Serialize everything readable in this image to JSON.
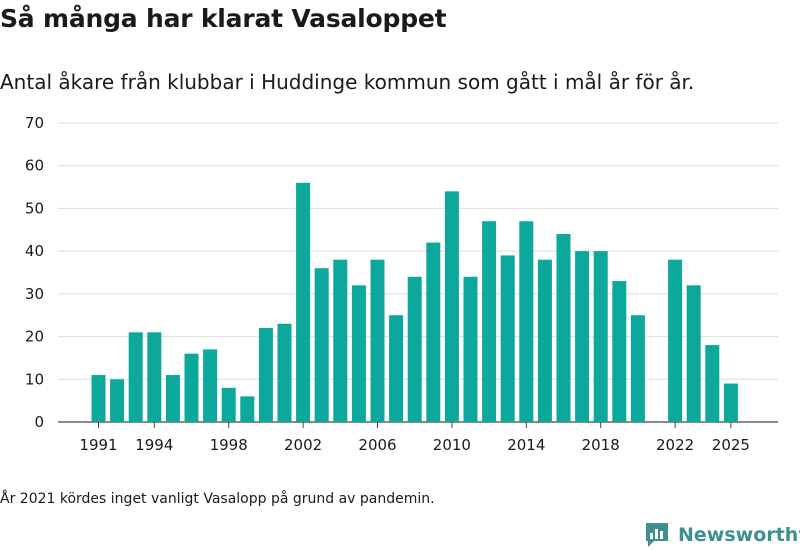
{
  "header": {
    "title": "Så många har klarat Vasaloppet",
    "subtitle": "Antal åkare från klubbar i Huddinge kommun som gått i mål år för år."
  },
  "footer": {
    "note": "År 2021 kördes inget vanligt Vasalopp på grund av pandemin.",
    "brand": "Newsworthy"
  },
  "colors": {
    "bar": "#0ca89b",
    "grid": "#dddddd",
    "brand": "#3e8f8f"
  },
  "chart_data": {
    "type": "bar",
    "title": "Så många har klarat Vasaloppet",
    "subtitle": "Antal åkare från klubbar i Huddinge kommun som gått i mål år för år.",
    "xlabel": "",
    "ylabel": "",
    "ylim": [
      0,
      70
    ],
    "yticks": [
      0,
      10,
      20,
      30,
      40,
      50,
      60,
      70
    ],
    "xticks": [
      1991,
      1994,
      1998,
      2002,
      2006,
      2010,
      2014,
      2018,
      2022,
      2025
    ],
    "grid": true,
    "categories": [
      1991,
      1992,
      1993,
      1994,
      1995,
      1996,
      1997,
      1998,
      1999,
      2000,
      2001,
      2002,
      2003,
      2004,
      2005,
      2006,
      2007,
      2008,
      2009,
      2010,
      2011,
      2012,
      2013,
      2014,
      2015,
      2016,
      2017,
      2018,
      2019,
      2020,
      2021,
      2022,
      2023,
      2024,
      2025
    ],
    "values": [
      11,
      10,
      21,
      21,
      11,
      16,
      17,
      8,
      6,
      22,
      23,
      56,
      36,
      38,
      32,
      38,
      25,
      34,
      42,
      54,
      34,
      47,
      39,
      47,
      38,
      44,
      40,
      40,
      33,
      25,
      null,
      38,
      32,
      18,
      9
    ]
  }
}
